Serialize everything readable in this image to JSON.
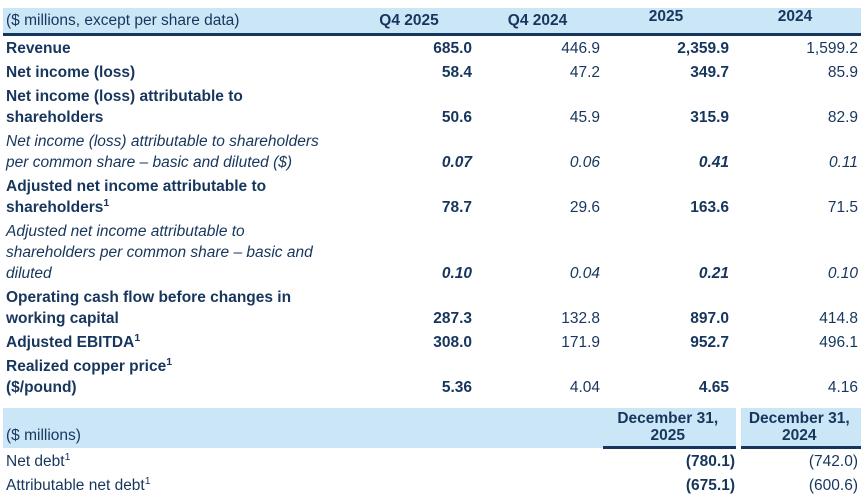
{
  "colors": {
    "header_bg": "#cbe7f7",
    "text": "#17365d",
    "rule": "#17365d"
  },
  "table1": {
    "header_label": "($ millions, except per share data)",
    "columns": [
      "Q4 2025",
      "Q4 2024",
      "2025",
      "2024"
    ],
    "rows": [
      {
        "bold": true,
        "lines": [
          {
            "text": "Revenue"
          }
        ],
        "values": [
          "685.0",
          "446.9",
          "2,359.9",
          "1,599.2"
        ]
      },
      {
        "bold": true,
        "lines": [
          {
            "text": "Net income (loss)"
          }
        ],
        "values": [
          "58.4",
          "47.2",
          "349.7",
          "85.9"
        ]
      },
      {
        "bold": true,
        "lines": [
          {
            "text": "Net income (loss) attributable to"
          },
          {
            "text": "shareholders"
          }
        ],
        "values": [
          "50.6",
          "45.9",
          "315.9",
          "82.9"
        ]
      },
      {
        "italic": true,
        "lines": [
          {
            "text": "Net income (loss) attributable to shareholders"
          },
          {
            "text": "per common share – basic and diluted ($)"
          }
        ],
        "values": [
          "0.07",
          "0.06",
          "0.41",
          "0.11"
        ]
      },
      {
        "bold": true,
        "lines": [
          {
            "text": "Adjusted net income attributable to"
          },
          {
            "text": "shareholders",
            "sup": "1"
          }
        ],
        "values": [
          "78.7",
          "29.6",
          "163.6",
          "71.5"
        ]
      },
      {
        "italic": true,
        "lines": [
          {
            "text": "Adjusted net income attributable to"
          },
          {
            "text": "shareholders per common share – basic and"
          },
          {
            "text": "diluted"
          }
        ],
        "values": [
          "0.10",
          "0.04",
          "0.21",
          "0.10"
        ]
      },
      {
        "bold": true,
        "lines": [
          {
            "text": "Operating cash flow before changes in"
          },
          {
            "text": "working capital"
          }
        ],
        "values": [
          "287.3",
          "132.8",
          "897.0",
          "414.8"
        ]
      },
      {
        "bold": true,
        "lines": [
          {
            "text": "Adjusted EBITDA",
            "sup": "1"
          }
        ],
        "values": [
          "308.0",
          "171.9",
          "952.7",
          "496.1"
        ]
      },
      {
        "bold": true,
        "lines": [
          {
            "text": "Realized copper price",
            "sup": "1"
          },
          {
            "text": "($/pound)"
          }
        ],
        "values": [
          "5.36",
          "4.04",
          "4.65",
          "4.16"
        ]
      }
    ]
  },
  "table2": {
    "header_label": "($ millions)",
    "columns": [
      {
        "line1": "December 31,",
        "line2": "2025"
      },
      {
        "line1": "December 31,",
        "line2": "2024"
      }
    ],
    "rows": [
      {
        "lines": [
          {
            "text": "Net debt",
            "sup": "1"
          }
        ],
        "values": [
          "(780.1)",
          "(742.0)"
        ]
      },
      {
        "lines": [
          {
            "text": "Attributable net debt",
            "sup": "1"
          }
        ],
        "values": [
          "(675.1)",
          "(600.6)"
        ]
      }
    ]
  }
}
